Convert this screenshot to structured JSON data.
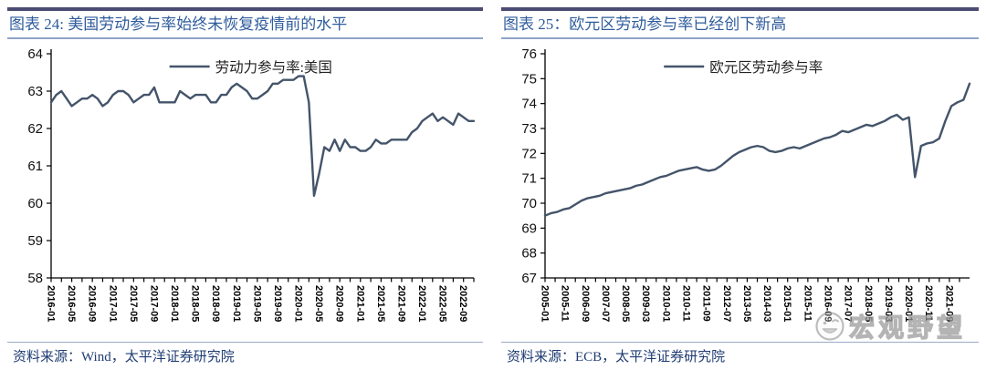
{
  "colors": {
    "line": "#44546A",
    "title_text": "#2F5C9C",
    "top_bar": "#4B4B74",
    "rule": "#90A4C6",
    "source_text": "#1F3C73",
    "axis": "#000000",
    "watermark": "#9c9c9c"
  },
  "watermark": {
    "icon": "smiley-face-icon",
    "text": "宏观野望"
  },
  "chart_data": [
    {
      "type": "line",
      "title": "图表 24: 美国劳动参与率始终未恢复疫情前的水平",
      "legend": "劳动力参与率:美国",
      "source": "资料来源：Wind，太平洋证券研究院",
      "ylabel": "",
      "xlabel": "",
      "grid": false,
      "legend_position": "top-center",
      "line_color": "#44546A",
      "ylim": [
        58,
        64
      ],
      "y_ticks": [
        58,
        59,
        60,
        61,
        62,
        63,
        64
      ],
      "x_tick_labels": [
        "2016-01",
        "2016-05",
        "2016-09",
        "2017-01",
        "2017-05",
        "2017-09",
        "2018-01",
        "2018-05",
        "2018-09",
        "2019-01",
        "2019-05",
        "2019-09",
        "2020-01",
        "2020-05",
        "2020-09",
        "2021-01",
        "2021-05",
        "2021-09",
        "2022-01",
        "2022-05",
        "2022-09"
      ],
      "x_tick_months": [
        0,
        4,
        8,
        12,
        16,
        20,
        24,
        28,
        32,
        36,
        40,
        44,
        48,
        52,
        56,
        60,
        64,
        68,
        72,
        76,
        80
      ],
      "x_total_months": 82,
      "x_start": "2016-01",
      "x_freq": "monthly",
      "values": [
        62.7,
        62.9,
        63.0,
        62.8,
        62.6,
        62.7,
        62.8,
        62.8,
        62.9,
        62.8,
        62.6,
        62.7,
        62.9,
        63.0,
        63.0,
        62.9,
        62.7,
        62.8,
        62.9,
        62.9,
        63.1,
        62.7,
        62.7,
        62.7,
        62.7,
        63.0,
        62.9,
        62.8,
        62.9,
        62.9,
        62.9,
        62.7,
        62.7,
        62.9,
        62.9,
        63.1,
        63.2,
        63.1,
        63.0,
        62.8,
        62.8,
        62.9,
        63.0,
        63.2,
        63.2,
        63.3,
        63.3,
        63.3,
        63.4,
        63.4,
        62.7,
        60.2,
        60.8,
        61.5,
        61.4,
        61.7,
        61.4,
        61.7,
        61.5,
        61.5,
        61.4,
        61.4,
        61.5,
        61.7,
        61.6,
        61.6,
        61.7,
        61.7,
        61.7,
        61.7,
        61.9,
        62.0,
        62.2,
        62.3,
        62.4,
        62.2,
        62.3,
        62.2,
        62.1,
        62.4,
        62.3,
        62.2,
        62.2
      ]
    },
    {
      "type": "line",
      "title": "图表 25：欧元区劳动参与率已经创下新高",
      "legend": "欧元区劳动参与率",
      "source": "资料来源：ECB，太平洋证券研究院",
      "ylabel": "",
      "xlabel": "",
      "grid": false,
      "legend_position": "top-center",
      "line_color": "#44546A",
      "ylim": [
        67,
        76
      ],
      "y_ticks": [
        67,
        68,
        69,
        70,
        71,
        72,
        73,
        74,
        75,
        76
      ],
      "x_tick_labels": [
        "2005-01",
        "2005-11",
        "2006-09",
        "2007-07",
        "2008-05",
        "2009-03",
        "2010-01",
        "2010-11",
        "2011-09",
        "2012-07",
        "2013-05",
        "2014-03",
        "2015-01",
        "2015-11",
        "2016-09",
        "2017-07",
        "2018-05",
        "2019-03",
        "2020-01",
        "2020-11",
        "2021-09"
      ],
      "x_tick_months": [
        0,
        10,
        20,
        30,
        40,
        50,
        60,
        70,
        80,
        90,
        100,
        110,
        120,
        130,
        140,
        150,
        160,
        170,
        180,
        190,
        200
      ],
      "x_total_months": 210,
      "x_start": "2005-01",
      "x_freq": "quarterly",
      "values": [
        69.5,
        69.6,
        69.65,
        69.75,
        69.8,
        69.95,
        70.1,
        70.2,
        70.25,
        70.3,
        70.4,
        70.45,
        70.5,
        70.55,
        70.6,
        70.7,
        70.75,
        70.85,
        70.95,
        71.05,
        71.1,
        71.2,
        71.3,
        71.35,
        71.4,
        71.45,
        71.35,
        71.3,
        71.35,
        71.5,
        71.7,
        71.9,
        72.05,
        72.15,
        72.25,
        72.3,
        72.25,
        72.1,
        72.05,
        72.1,
        72.2,
        72.25,
        72.2,
        72.3,
        72.4,
        72.5,
        72.6,
        72.65,
        72.75,
        72.9,
        72.85,
        72.95,
        73.05,
        73.15,
        73.1,
        73.2,
        73.3,
        73.45,
        73.55,
        73.35,
        73.45,
        71.05,
        72.3,
        72.4,
        72.45,
        72.6,
        73.3,
        73.9,
        74.05,
        74.15,
        74.8
      ]
    }
  ]
}
